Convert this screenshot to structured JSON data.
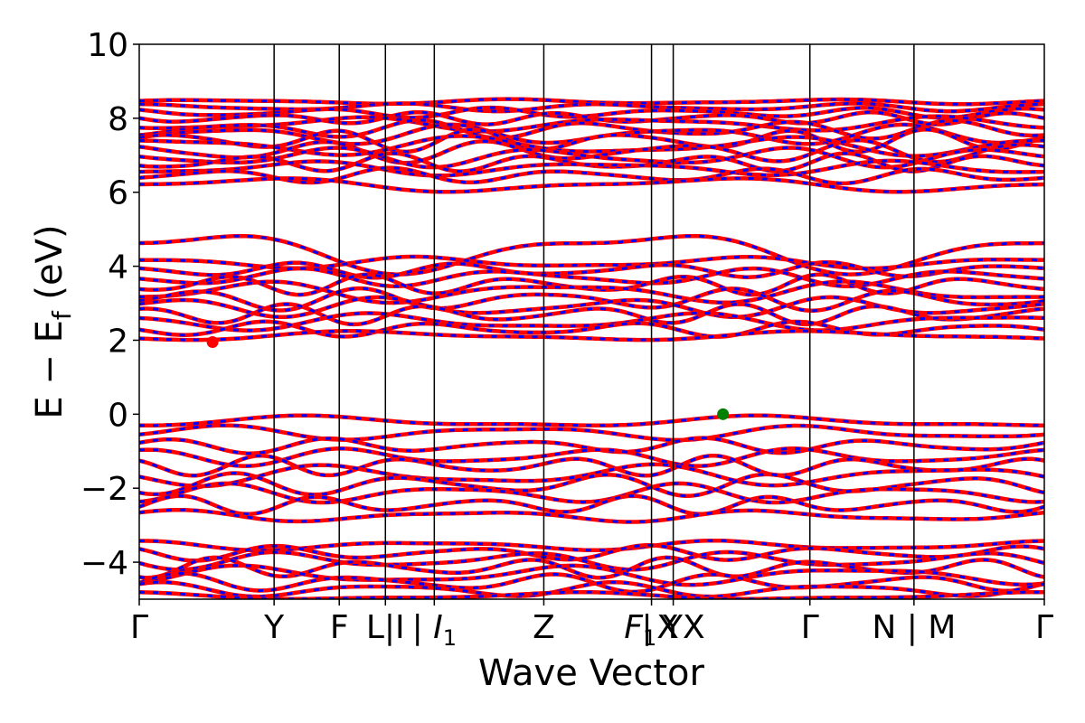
{
  "chart_data": {
    "type": "line",
    "title": "",
    "xlabel": "Wave Vector",
    "ylabel": "E − E",
    "ylabel_sub": "f",
    "ylabel_unit": " (eV)",
    "ylim": [
      -5,
      10
    ],
    "yticks": [
      -4,
      -2,
      0,
      2,
      4,
      6,
      8,
      10
    ],
    "ytick_labels": [
      "−4",
      "−2",
      "0",
      "2",
      "4",
      "6",
      "8",
      "10"
    ],
    "xlim": [
      0,
      1
    ],
    "kpoints": [
      {
        "x": 0.0,
        "label": "Γ"
      },
      {
        "x": 0.149,
        "label": "Y"
      },
      {
        "x": 0.221,
        "label": "F"
      },
      {
        "x": 0.272,
        "label": "L|I"
      },
      {
        "x": 0.326,
        "label": "I",
        "sub": "1",
        "italic": true,
        "prefix": "| "
      },
      {
        "x": 0.447,
        "label": "Z"
      },
      {
        "x": 0.566,
        "label": "F",
        "sub": "1",
        "italic": true,
        "suffix_part": "X"
      },
      {
        "x": 0.59,
        "label": "| YX"
      },
      {
        "x": 0.741,
        "label": "Γ"
      },
      {
        "x": 0.856,
        "label": "N | M"
      },
      {
        "x": 1.0,
        "label": "Γ"
      }
    ],
    "vlines": [
      0.149,
      0.221,
      0.272,
      0.326,
      0.447,
      0.566,
      0.59,
      0.741,
      0.856
    ],
    "series": [
      {
        "color": "#ff0000",
        "style": "solid"
      },
      {
        "color": "#0000ff",
        "style": "dashed"
      }
    ],
    "bands": [
      {
        "base": 8.45,
        "amp": 0.05,
        "f": 3
      },
      {
        "base": 8.3,
        "amp": 0.08,
        "f": 4
      },
      {
        "base": 8.15,
        "amp": 0.1,
        "f": 5
      },
      {
        "base": 8.0,
        "amp": 0.12,
        "f": 6
      },
      {
        "base": 7.85,
        "amp": 0.15,
        "f": 3
      },
      {
        "base": 7.7,
        "amp": 0.18,
        "f": 5
      },
      {
        "base": 7.55,
        "amp": 0.2,
        "f": 4
      },
      {
        "base": 7.4,
        "amp": 0.22,
        "f": 6
      },
      {
        "base": 7.25,
        "amp": 0.2,
        "f": 3
      },
      {
        "base": 7.1,
        "amp": 0.22,
        "f": 5
      },
      {
        "base": 6.95,
        "amp": 0.2,
        "f": 4
      },
      {
        "base": 6.8,
        "amp": 0.18,
        "f": 6
      },
      {
        "base": 6.65,
        "amp": 0.15,
        "f": 3
      },
      {
        "base": 6.45,
        "amp": 0.15,
        "f": 5
      },
      {
        "base": 6.2,
        "amp": 0.15,
        "f": 2
      },
      {
        "base": 4.4,
        "amp": 0.45,
        "f": 2
      },
      {
        "base": 4.1,
        "amp": 0.12,
        "f": 3
      },
      {
        "base": 3.9,
        "amp": 0.15,
        "f": 5
      },
      {
        "base": 3.7,
        "amp": 0.18,
        "f": 4
      },
      {
        "base": 3.5,
        "amp": 0.2,
        "f": 6
      },
      {
        "base": 3.3,
        "amp": 0.22,
        "f": 3
      },
      {
        "base": 3.1,
        "amp": 0.22,
        "f": 5
      },
      {
        "base": 2.9,
        "amp": 0.2,
        "f": 4
      },
      {
        "base": 2.7,
        "amp": 0.2,
        "f": 6
      },
      {
        "base": 2.5,
        "amp": 0.18,
        "f": 3
      },
      {
        "base": 2.3,
        "amp": 0.15,
        "f": 5
      },
      {
        "base": 2.12,
        "amp": 0.1,
        "f": 2
      },
      {
        "base": -0.2,
        "amp": 0.12,
        "f": 2
      },
      {
        "base": -0.5,
        "amp": 0.15,
        "f": 3
      },
      {
        "base": -0.85,
        "amp": 0.15,
        "f": 5
      },
      {
        "base": -1.15,
        "amp": 0.18,
        "f": 4
      },
      {
        "base": -1.4,
        "amp": 0.2,
        "f": 6
      },
      {
        "base": -1.65,
        "amp": 0.22,
        "f": 3
      },
      {
        "base": -1.9,
        "amp": 0.22,
        "f": 5
      },
      {
        "base": -2.15,
        "amp": 0.2,
        "f": 4
      },
      {
        "base": -2.45,
        "amp": 0.18,
        "f": 6
      },
      {
        "base": -2.75,
        "amp": 0.12,
        "f": 3
      },
      {
        "base": -3.55,
        "amp": 0.1,
        "f": 3
      },
      {
        "base": -3.75,
        "amp": 0.15,
        "f": 5
      },
      {
        "base": -3.95,
        "amp": 0.18,
        "f": 4
      },
      {
        "base": -4.15,
        "amp": 0.2,
        "f": 6
      },
      {
        "base": -4.35,
        "amp": 0.2,
        "f": 3
      },
      {
        "base": -4.55,
        "amp": 0.18,
        "f": 5
      },
      {
        "base": -4.75,
        "amp": 0.15,
        "f": 4
      },
      {
        "base": -4.92,
        "amp": 0.08,
        "f": 2
      }
    ],
    "markers": [
      {
        "x": 0.081,
        "y": 1.95,
        "color": "#ff0000",
        "name": "cbm-marker"
      },
      {
        "x": 0.645,
        "y": 0.0,
        "color": "#008000",
        "name": "vbm-marker"
      }
    ]
  }
}
